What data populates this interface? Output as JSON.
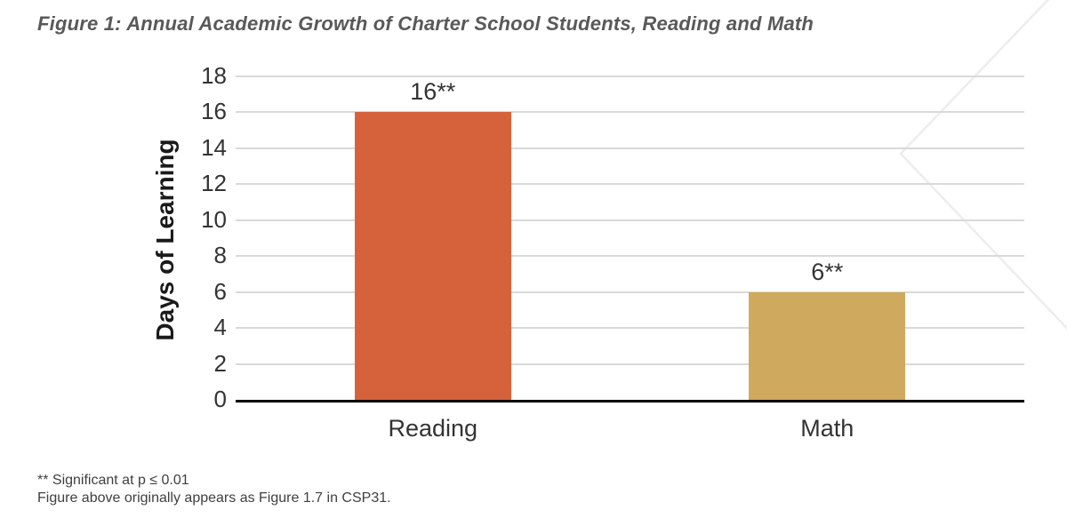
{
  "figure": {
    "title": "Figure 1: Annual Academic Growth of Charter School Students, Reading and Math",
    "footnotes": [
      "** Significant at p ≤ 0.01",
      "Figure above originally appears as Figure 1.7 in CSP31."
    ]
  },
  "chart_data": {
    "type": "bar",
    "categories": [
      "Reading",
      "Math"
    ],
    "values": [
      16,
      6
    ],
    "data_labels": [
      "16**",
      "6**"
    ],
    "title": "",
    "xlabel": "",
    "ylabel": "Days of Learning",
    "ylim": [
      0,
      18
    ],
    "ytick_interval": 2,
    "grid": "horizontal",
    "legend": "none",
    "bar_colors": [
      "#D6623B",
      "#CFA95E"
    ]
  },
  "style_colors": {
    "title_text": "#595959",
    "axis_text": "#333333",
    "gridline": "#D9D9D9",
    "baseline": "#000000",
    "footnote_text": "#404040",
    "watermark": "#EDEDED"
  }
}
